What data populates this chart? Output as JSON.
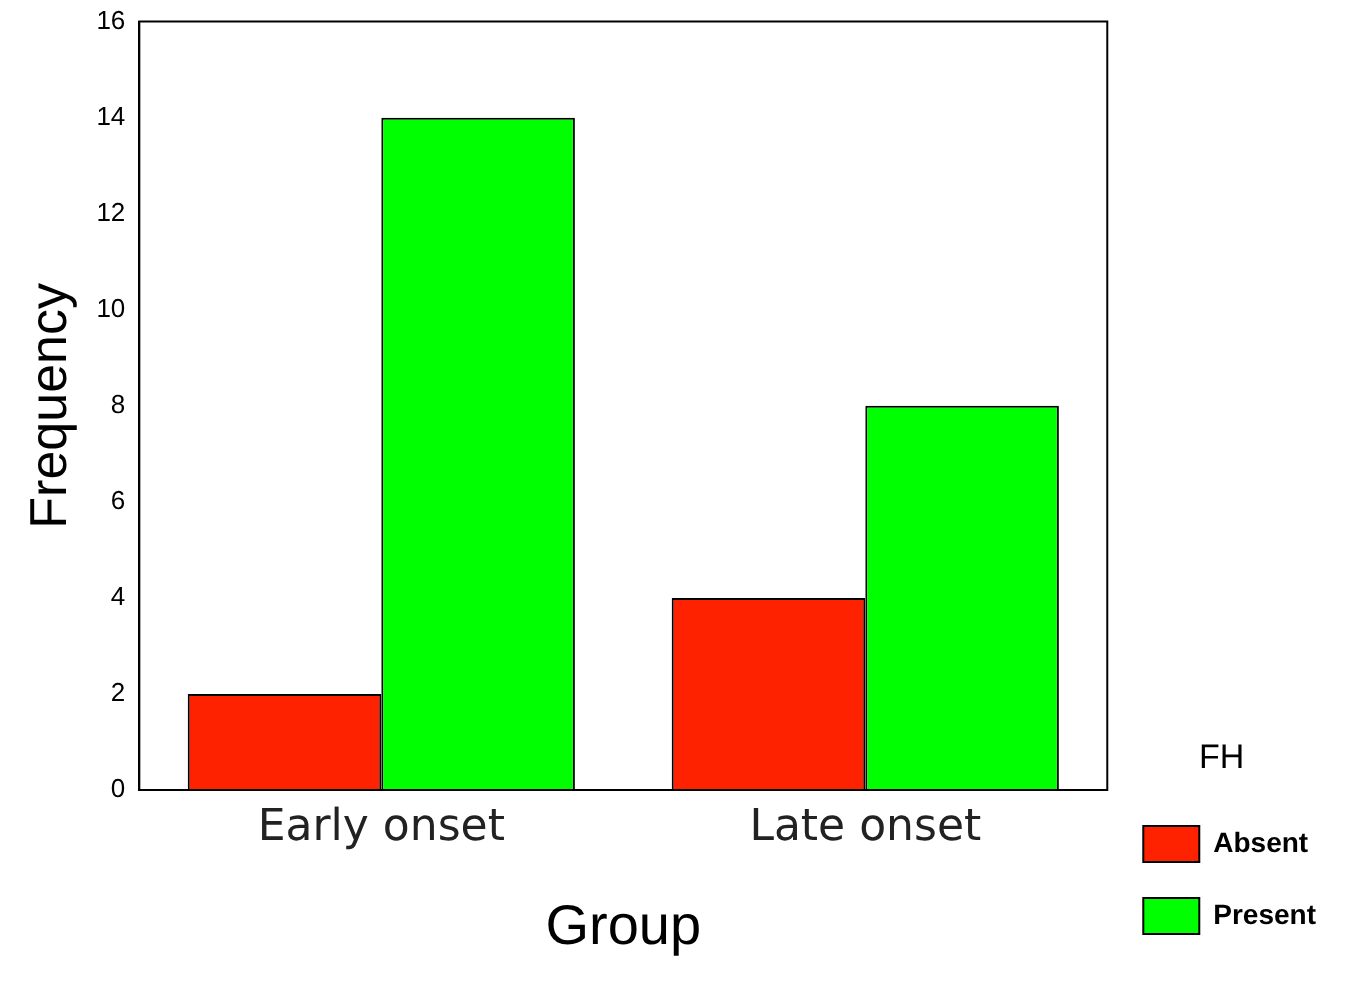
{
  "chart_data": {
    "type": "bar",
    "xlabel": "Group",
    "ylabel": "Frequency",
    "legend_title": "FH",
    "categories": [
      "Early onset",
      "Late onset"
    ],
    "series": [
      {
        "name": "Absent",
        "color": "#ff2200",
        "values": [
          2,
          4
        ]
      },
      {
        "name": "Present",
        "color": "#00ff00",
        "values": [
          14,
          8
        ]
      }
    ],
    "ylim": [
      0,
      16
    ],
    "yticks": [
      0,
      2,
      4,
      6,
      8,
      10,
      12,
      14,
      16
    ],
    "grid": false,
    "legend": "right"
  }
}
